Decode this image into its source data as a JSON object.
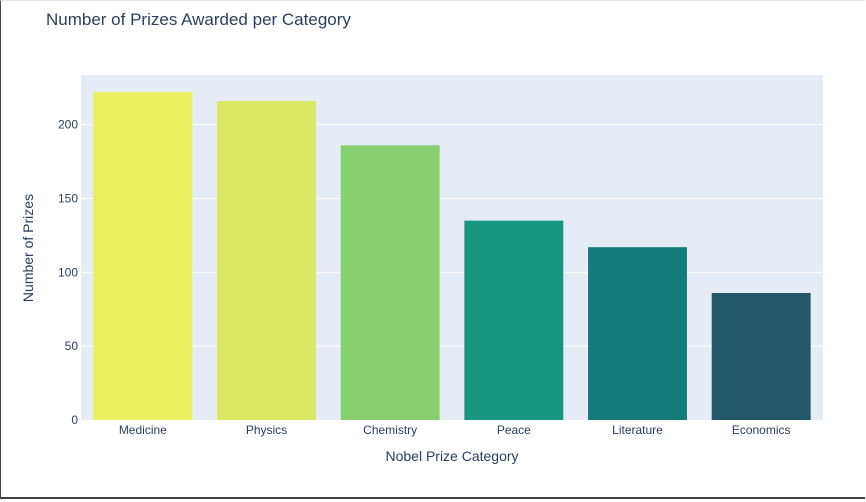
{
  "chart_data": {
    "type": "bar",
    "title": "Number of Prizes Awarded per Category",
    "xlabel": "Nobel Prize Category",
    "ylabel": "Number of Prizes",
    "categories": [
      "Medicine",
      "Physics",
      "Chemistry",
      "Peace",
      "Literature",
      "Economics"
    ],
    "values": [
      222,
      216,
      186,
      135,
      117,
      86
    ],
    "colors": [
      "#eaf05f",
      "#dbe863",
      "#87cf6f",
      "#189682",
      "#137c7b",
      "#24566a"
    ],
    "ylim": [
      0,
      233.6
    ],
    "yticks": [
      0,
      50,
      100,
      150,
      200
    ],
    "grid": true,
    "plot_bg": "#e5ecf6"
  }
}
